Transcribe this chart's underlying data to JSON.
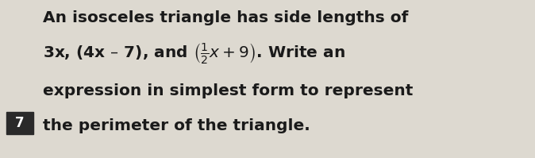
{
  "background_color": "#ddd9d0",
  "number_box_color": "#2a2a2a",
  "number_text": "7",
  "number_text_color": "#ffffff",
  "line1": "An isosceles triangle has side lengths of",
  "line2": "3x, (4x – 7), and $\\left(\\frac{1}{2}x + 9\\right)$. Write an",
  "line3": "expression in simplest form to represent",
  "line4": "the perimeter of the triangle.",
  "font_size_main": 14.5,
  "font_size_number": 12,
  "text_color": "#1a1a1a",
  "figsize": [
    6.74,
    1.99
  ],
  "dpi": 100
}
